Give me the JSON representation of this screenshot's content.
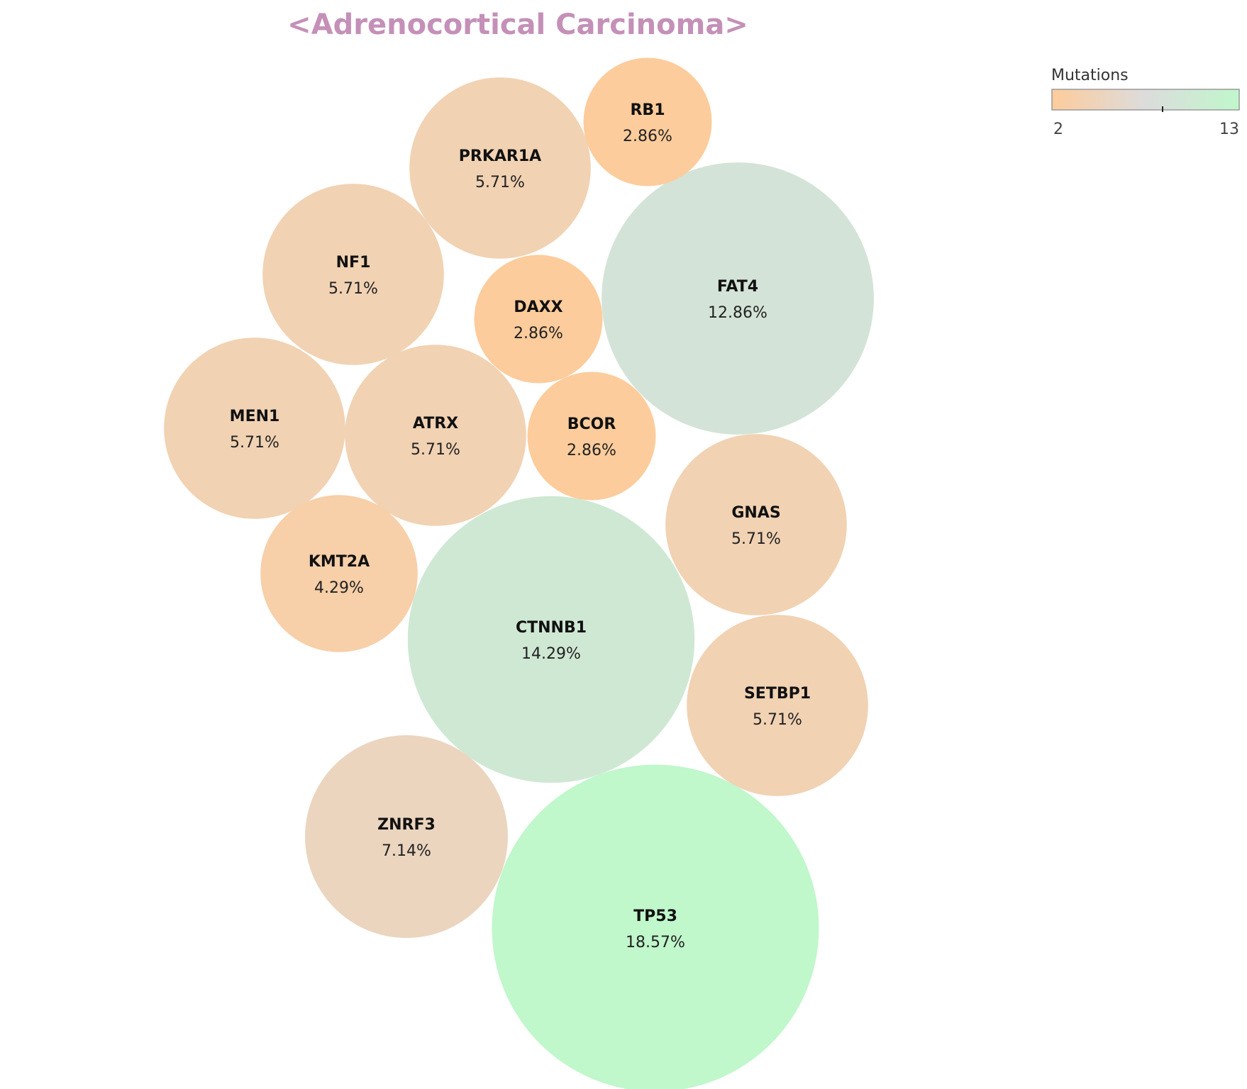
{
  "chart_data": {
    "type": "bubble",
    "title": "<Adrenocortical Carcinoma>",
    "colors": {
      "title": "#c490b8",
      "scale_low": "#fdcc9c",
      "scale_mid": "#dcdcdc",
      "scale_high": "#c0f7cb"
    },
    "legend": {
      "title": "Mutations",
      "min": 2,
      "max": 13,
      "min_label": "2",
      "max_label": "13",
      "mid_tick_value": 8.5,
      "placement": "top-right"
    },
    "bubbles": [
      {
        "gene": "TP53",
        "mutations": 13,
        "percent": 18.57,
        "percent_label": "18.57%"
      },
      {
        "gene": "CTNNB1",
        "mutations": 10,
        "percent": 14.29,
        "percent_label": "14.29%"
      },
      {
        "gene": "FAT4",
        "mutations": 9,
        "percent": 12.86,
        "percent_label": "12.86%"
      },
      {
        "gene": "ZNRF3",
        "mutations": 5,
        "percent": 7.14,
        "percent_label": "7.14%"
      },
      {
        "gene": "PRKAR1A",
        "mutations": 4,
        "percent": 5.71,
        "percent_label": "5.71%"
      },
      {
        "gene": "NF1",
        "mutations": 4,
        "percent": 5.71,
        "percent_label": "5.71%"
      },
      {
        "gene": "MEN1",
        "mutations": 4,
        "percent": 5.71,
        "percent_label": "5.71%"
      },
      {
        "gene": "ATRX",
        "mutations": 4,
        "percent": 5.71,
        "percent_label": "5.71%"
      },
      {
        "gene": "GNAS",
        "mutations": 4,
        "percent": 5.71,
        "percent_label": "5.71%"
      },
      {
        "gene": "SETBP1",
        "mutations": 4,
        "percent": 5.71,
        "percent_label": "5.71%"
      },
      {
        "gene": "KMT2A",
        "mutations": 3,
        "percent": 4.29,
        "percent_label": "4.29%"
      },
      {
        "gene": "RB1",
        "mutations": 2,
        "percent": 2.86,
        "percent_label": "2.86%"
      },
      {
        "gene": "DAXX",
        "mutations": 2,
        "percent": 2.86,
        "percent_label": "2.86%"
      },
      {
        "gene": "BCOR",
        "mutations": 2,
        "percent": 2.86,
        "percent_label": "2.86%"
      }
    ]
  }
}
